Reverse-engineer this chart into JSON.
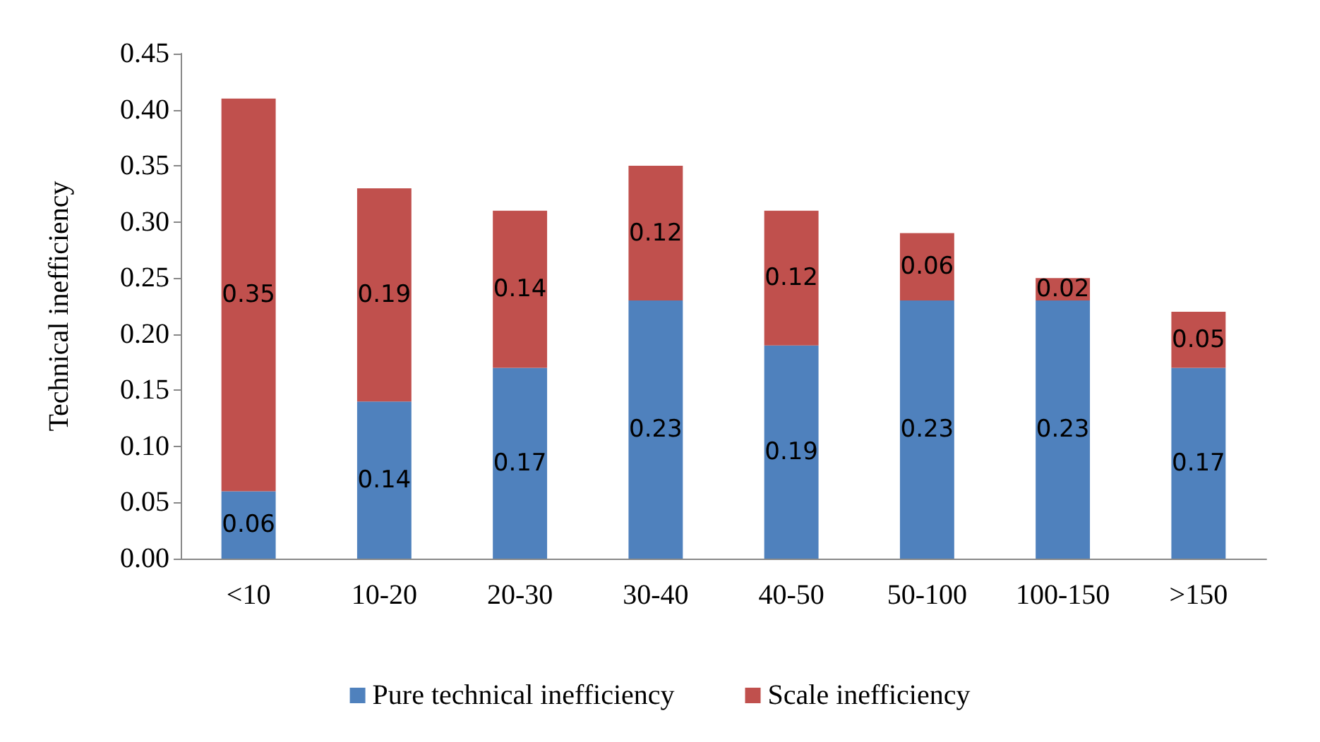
{
  "chart_data": {
    "type": "bar",
    "stacked": true,
    "ylabel": "Technical inefficiency",
    "categories": [
      "<10",
      "10-20",
      "20-30",
      "30-40",
      "40-50",
      "50-100",
      "100-150",
      ">150"
    ],
    "series": [
      {
        "name": "Pure technical inefficiency",
        "color": "#4f81bd",
        "values": [
          0.06,
          0.14,
          0.17,
          0.23,
          0.19,
          0.23,
          0.23,
          0.17
        ]
      },
      {
        "name": "Scale inefficiency",
        "color": "#c0504d",
        "values": [
          0.35,
          0.19,
          0.14,
          0.12,
          0.12,
          0.06,
          0.02,
          0.05
        ]
      }
    ],
    "ylim": [
      0,
      0.45
    ],
    "yticks": [
      {
        "value": 0,
        "label": "0.00"
      },
      {
        "value": 0.05,
        "label": "0.05"
      },
      {
        "value": 0.1,
        "label": "0.10"
      },
      {
        "value": 0.15,
        "label": "0.15"
      },
      {
        "value": 0.2,
        "label": "0.20"
      },
      {
        "value": 0.25,
        "label": "0.25"
      },
      {
        "value": 0.3,
        "label": "0.30"
      },
      {
        "value": 0.35,
        "label": "0.35"
      },
      {
        "value": 0.4,
        "label": "0.40"
      },
      {
        "value": 0.45,
        "label": "0.45"
      }
    ],
    "data_labels": true,
    "grid": false,
    "legend": "bottom"
  }
}
